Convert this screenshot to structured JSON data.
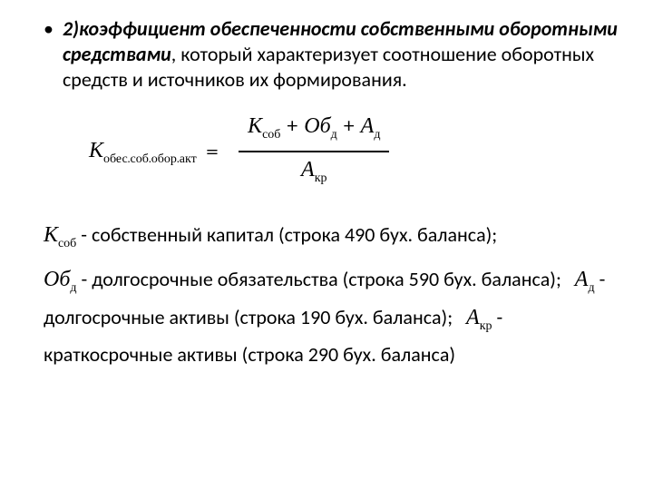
{
  "bullet": {
    "marker": "•",
    "lead": "2)коэффициент обеспеченности собственными оборотными средствами",
    "rest": ", который характеризует соотношение оборотных средств и источников их формирования."
  },
  "formula": {
    "lhs_var": "К",
    "lhs_sub": "обес.соб.обор.акт",
    "eq": "=",
    "num": {
      "t1v": "К",
      "t1s": "соб",
      "plus1": " + ",
      "t2v": "Об",
      "t2s": "д",
      "plus2": " + ",
      "t3v": "А",
      "t3s": "д"
    },
    "den": {
      "v": "А",
      "s": "кр"
    }
  },
  "legend": {
    "l1": {
      "v": "К",
      "s": "соб",
      "text": " - собственный капитал (строка 490 бух. баланса);"
    },
    "l2": {
      "v": "Об",
      "s": "д",
      "text": " - долгосрочные обязательства (строка 590 бух. баланса);"
    },
    "l3": {
      "v": "А",
      "s": "д",
      "text": " - долгосрочные активы (строка 190 бух. баланса);"
    },
    "l4": {
      "v": "А",
      "s": "кр",
      "text": " - краткосрочные активы (строка 290 бух. баланса)"
    }
  }
}
